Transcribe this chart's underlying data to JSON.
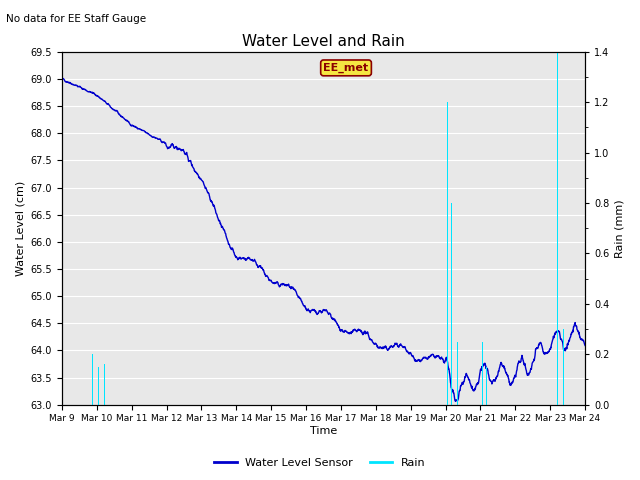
{
  "title": "Water Level and Rain",
  "subtitle": "No data for EE Staff Gauge",
  "xlabel": "Time",
  "ylabel_left": "Water Level (cm)",
  "ylabel_right": "Rain (mm)",
  "legend_label_water": "Water Level Sensor",
  "legend_label_rain": "Rain",
  "water_color": "#0000cc",
  "rain_color": "#00e5ff",
  "ylim_water": [
    63.0,
    69.5
  ],
  "ylim_rain": [
    0.0,
    1.4
  ],
  "yticks_water": [
    63.0,
    63.5,
    64.0,
    64.5,
    65.0,
    65.5,
    66.0,
    66.5,
    67.0,
    67.5,
    68.0,
    68.5,
    69.0,
    69.5
  ],
  "yticks_rain": [
    0.0,
    0.2,
    0.4,
    0.6,
    0.8,
    1.0,
    1.2,
    1.4
  ],
  "xtick_labels": [
    "Mar 9",
    "Mar 10",
    "Mar 11",
    "Mar 12",
    "Mar 13",
    "Mar 14",
    "Mar 15",
    "Mar 16",
    "Mar 17",
    "Mar 18",
    "Mar 19",
    "Mar 20",
    "Mar 21",
    "Mar 22",
    "Mar 23",
    "Mar 24"
  ],
  "annotation_text": "EE_met",
  "background_color": "#e8e8e8",
  "grid_color": "#ffffff",
  "fig_color": "#ffffff"
}
